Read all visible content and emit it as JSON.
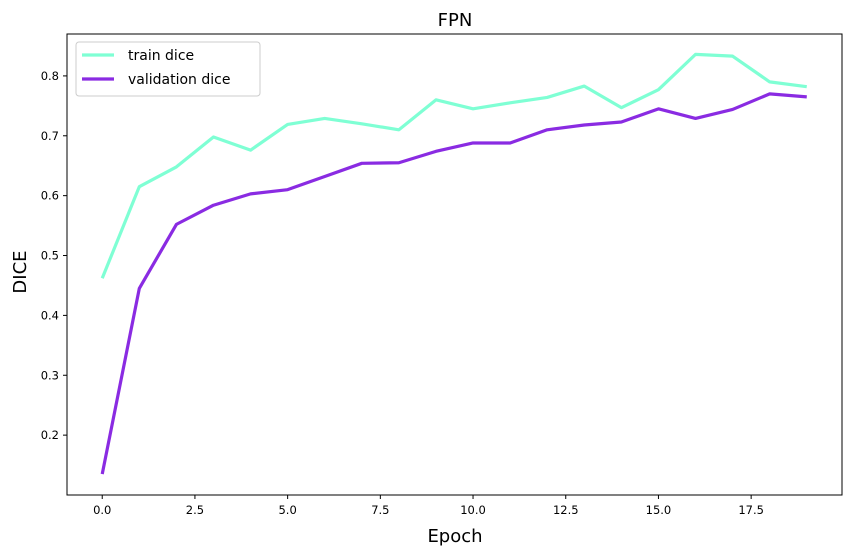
{
  "chart_data": {
    "type": "line",
    "title": "FPN",
    "xlabel": "Epoch",
    "ylabel": "DICE",
    "xlim": [
      -0.95,
      19.95
    ],
    "ylim": [
      0.1,
      0.87
    ],
    "xticks": [
      "0.0",
      "2.5",
      "5.0",
      "7.5",
      "10.0",
      "12.5",
      "15.0",
      "17.5"
    ],
    "xtick_values": [
      0,
      2.5,
      5,
      7.5,
      10,
      12.5,
      15,
      17.5
    ],
    "yticks": [
      "0.2",
      "0.3",
      "0.4",
      "0.5",
      "0.6",
      "0.7",
      "0.8"
    ],
    "ytick_values": [
      0.2,
      0.3,
      0.4,
      0.5,
      0.6,
      0.7,
      0.8
    ],
    "grid": false,
    "legend_position": "top-left",
    "x": [
      0,
      1,
      2,
      3,
      4,
      5,
      6,
      7,
      8,
      9,
      10,
      11,
      12,
      13,
      14,
      15,
      16,
      17,
      18,
      19
    ],
    "series": [
      {
        "name": "train dice",
        "color": "#7fffd4",
        "values": [
          0.462,
          0.615,
          0.648,
          0.698,
          0.676,
          0.719,
          0.729,
          0.72,
          0.71,
          0.76,
          0.745,
          0.755,
          0.764,
          0.783,
          0.747,
          0.777,
          0.836,
          0.833,
          0.79,
          0.782
        ]
      },
      {
        "name": "validation dice",
        "color": "#8a2be2",
        "values": [
          0.135,
          0.445,
          0.552,
          0.584,
          0.603,
          0.61,
          0.632,
          0.654,
          0.655,
          0.674,
          0.688,
          0.688,
          0.71,
          0.718,
          0.723,
          0.745,
          0.729,
          0.744,
          0.77,
          0.765
        ]
      }
    ]
  }
}
